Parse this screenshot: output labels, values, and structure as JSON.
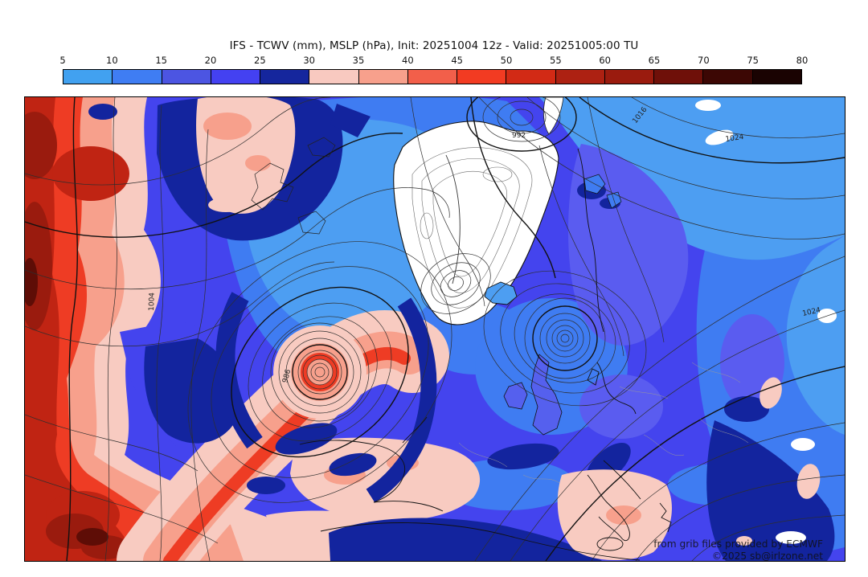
{
  "title": "IFS - TCWV (mm), MSLP (hPa), Init: 20251004 12z - Valid: 20251005:00 TU",
  "colorbar": {
    "tick_labels": [
      "5",
      "10",
      "15",
      "20",
      "25",
      "30",
      "35",
      "40",
      "45",
      "50",
      "55",
      "60",
      "65",
      "70",
      "75",
      "80"
    ],
    "segment_colors": [
      "#41a1f0",
      "#3f7df3",
      "#4c55e2",
      "#4441f1",
      "#15269d",
      "#f8c9c0",
      "#f7a08c",
      "#f25f4a",
      "#f23b22",
      "#d22a15",
      "#ad2112",
      "#9a1b0e",
      "#6f1009",
      "#3c0704",
      "#1a0302"
    ]
  },
  "map": {
    "isobar_labels": [
      {
        "text": "992"
      },
      {
        "text": "1016"
      },
      {
        "text": "1024"
      },
      {
        "text": "986"
      },
      {
        "text": "1004"
      },
      {
        "text": "1024"
      }
    ],
    "watermark_line1": "from grib files provided by ECMWF",
    "watermark_line2": "©2025 sb@irlzone.net"
  },
  "chart_data": {
    "type": "heatmap",
    "title": "IFS - TCWV (mm), MSLP (hPa), Init: 20251004 12z - Valid: 20251005:00 TU",
    "variable": "Total Column Water Vapour (mm), shaded; Mean Sea Level Pressure (hPa), contours",
    "colorbar_ticks": [
      5,
      10,
      15,
      20,
      25,
      30,
      35,
      40,
      45,
      50,
      55,
      60,
      65,
      70,
      75,
      80
    ],
    "colorbar_colors": [
      "#41a1f0",
      "#3f7df3",
      "#4c55e2",
      "#4441f1",
      "#15269d",
      "#f8c9c0",
      "#f7a08c",
      "#f25f4a",
      "#f23b22",
      "#d22a15",
      "#ad2112",
      "#9a1b0e",
      "#6f1009",
      "#3c0704",
      "#1a0302"
    ],
    "pressure_labels_visible": [
      992,
      1016,
      1024,
      986,
      1004
    ],
    "legend_position": "top",
    "region": "North Atlantic / Europe / Greenland"
  }
}
